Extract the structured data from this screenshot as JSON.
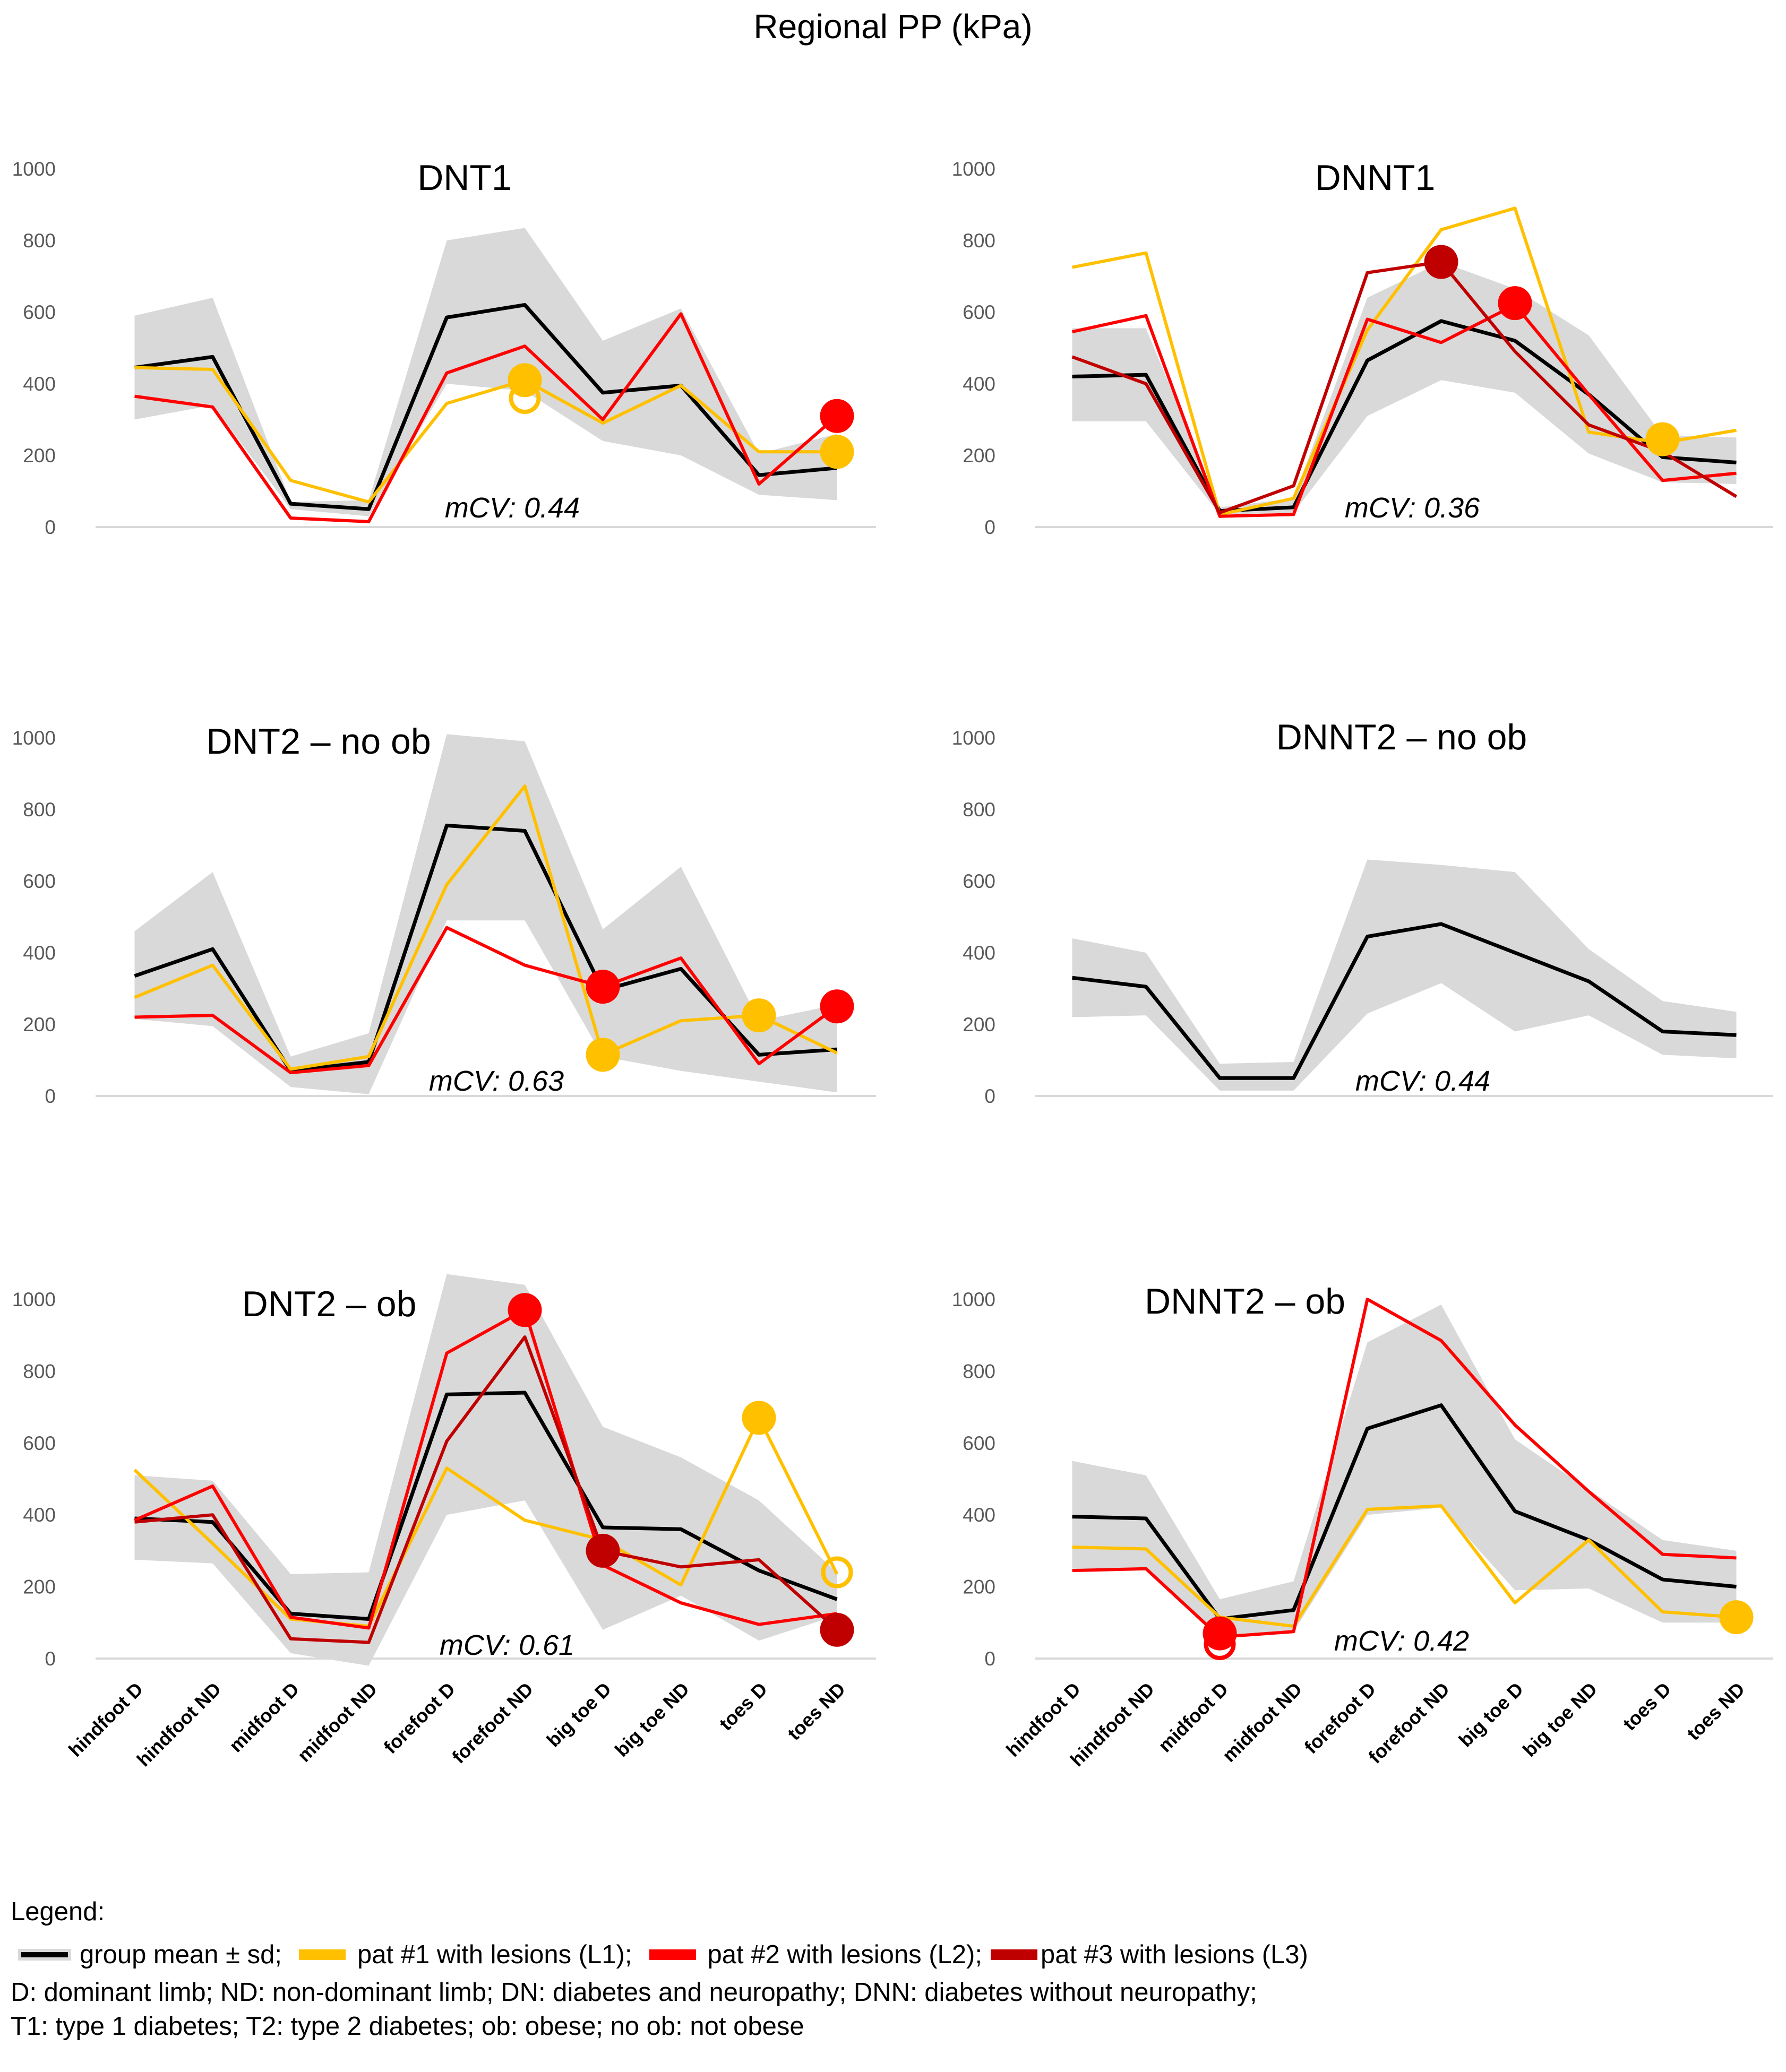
{
  "title": "Regional PP (kPa)",
  "colors": {
    "mean": "#000000",
    "sd_band": "#d9d9d9",
    "pat1": "#ffc000",
    "pat2": "#ff0000",
    "pat3": "#c00000",
    "axis": "#d9d9d9",
    "tick_text": "#595959"
  },
  "chart_data": [
    {
      "type": "line",
      "title": "DNT1",
      "annotation": "mCV: 0.44",
      "categories": [
        "hindfoot D",
        "hindfoot ND",
        "midfoot D",
        "midfoot ND",
        "forefoot D",
        "forefoot ND",
        "big toe D",
        "big toe ND",
        "toes D",
        "toes ND"
      ],
      "show_category_labels": false,
      "yticks": [
        "0",
        "200",
        "400",
        "600",
        "800",
        "1000"
      ],
      "ylim": [
        0,
        1000
      ],
      "band": {
        "lower": [
          300,
          340,
          50,
          30,
          400,
          380,
          240,
          200,
          90,
          75
        ],
        "upper": [
          590,
          640,
          70,
          75,
          800,
          835,
          520,
          610,
          205,
          260
        ]
      },
      "series": [
        {
          "name": "group mean ± sd",
          "color_key": "mean",
          "values": [
            445,
            475,
            65,
            50,
            585,
            620,
            375,
            395,
            145,
            165
          ]
        },
        {
          "name": "pat #1 with lesions (L1)",
          "color_key": "pat1",
          "values": [
            445,
            440,
            130,
            70,
            345,
            410,
            290,
            395,
            210,
            210
          ]
        },
        {
          "name": "pat #2 with lesions (L2)",
          "color_key": "pat2",
          "values": [
            365,
            335,
            25,
            15,
            430,
            505,
            300,
            595,
            120,
            310
          ]
        }
      ],
      "markers": [
        {
          "series": "pat1",
          "index": 5,
          "value": 410,
          "style": "filled"
        },
        {
          "series": "pat1",
          "index": 5,
          "value": 360,
          "style": "open"
        },
        {
          "series": "pat1",
          "index": 9,
          "value": 210,
          "style": "filled"
        },
        {
          "series": "pat2",
          "index": 9,
          "value": 310,
          "style": "filled"
        }
      ]
    },
    {
      "type": "line",
      "title": "DNNT1",
      "annotation": "mCV: 0.36",
      "categories": [
        "hindfoot D",
        "hindfoot ND",
        "midfoot D",
        "midfoot ND",
        "forefoot D",
        "forefoot ND",
        "big toe D",
        "big toe ND",
        "toes D",
        "toes ND"
      ],
      "show_category_labels": false,
      "yticks": [
        "0",
        "200",
        "400",
        "600",
        "800",
        "1000"
      ],
      "ylim": [
        0,
        1000
      ],
      "band": {
        "lower": [
          295,
          295,
          35,
          40,
          310,
          410,
          375,
          205,
          125,
          120
        ],
        "upper": [
          555,
          555,
          55,
          80,
          640,
          740,
          665,
          535,
          255,
          250
        ]
      },
      "series": [
        {
          "name": "group mean ± sd",
          "color_key": "mean",
          "values": [
            420,
            425,
            45,
            55,
            465,
            575,
            520,
            370,
            195,
            180
          ]
        },
        {
          "name": "pat #1 with lesions (L1)",
          "color_key": "pat1",
          "values": [
            725,
            765,
            35,
            80,
            550,
            830,
            890,
            265,
            235,
            270
          ]
        },
        {
          "name": "pat #2 with lesions (L2)",
          "color_key": "pat2",
          "values": [
            545,
            590,
            30,
            35,
            580,
            515,
            620,
            370,
            130,
            150
          ]
        },
        {
          "name": "pat #3 with lesions (L3)",
          "color_key": "pat3",
          "values": [
            475,
            400,
            40,
            115,
            710,
            740,
            490,
            285,
            210,
            85
          ]
        }
      ],
      "markers": [
        {
          "series": "pat3",
          "index": 5,
          "value": 740,
          "style": "filled"
        },
        {
          "series": "pat2",
          "index": 6,
          "value": 625,
          "style": "filled"
        },
        {
          "series": "pat1",
          "index": 8,
          "value": 245,
          "style": "filled"
        }
      ]
    },
    {
      "type": "line",
      "title": "DNT2 – no ob",
      "annotation": "mCV: 0.63",
      "categories": [
        "hindfoot D",
        "hindfoot ND",
        "midfoot D",
        "midfoot ND",
        "forefoot D",
        "forefoot ND",
        "big toe D",
        "big toe ND",
        "toes D",
        "toes ND"
      ],
      "show_category_labels": false,
      "yticks": [
        "0",
        "200",
        "400",
        "600",
        "800",
        "1000"
      ],
      "ylim": [
        0,
        1000
      ],
      "band": {
        "lower": [
          215,
          195,
          25,
          5,
          490,
          490,
          110,
          70,
          40,
          10
        ],
        "upper": [
          460,
          625,
          110,
          175,
          1010,
          990,
          465,
          640,
          210,
          255
        ]
      },
      "series": [
        {
          "name": "group mean ± sd",
          "color_key": "mean",
          "values": [
            335,
            410,
            70,
            95,
            755,
            740,
            295,
            355,
            115,
            130
          ]
        },
        {
          "name": "pat #1 with lesions (L1)",
          "color_key": "pat1",
          "values": [
            275,
            365,
            75,
            110,
            590,
            865,
            115,
            210,
            225,
            120
          ]
        },
        {
          "name": "pat #2 with lesions (L2)",
          "color_key": "pat2",
          "values": [
            220,
            225,
            65,
            85,
            470,
            365,
            305,
            385,
            90,
            250
          ]
        }
      ],
      "markers": [
        {
          "series": "pat2",
          "index": 6,
          "value": 305,
          "style": "filled"
        },
        {
          "series": "pat1",
          "index": 6,
          "value": 115,
          "style": "filled"
        },
        {
          "series": "pat1",
          "index": 8,
          "value": 225,
          "style": "filled"
        },
        {
          "series": "pat2",
          "index": 9,
          "value": 250,
          "style": "filled"
        }
      ]
    },
    {
      "type": "line",
      "title": "DNNT2 – no ob",
      "annotation": "mCV: 0.44",
      "categories": [
        "hindfoot D",
        "hindfoot ND",
        "midfoot D",
        "midfoot ND",
        "forefoot D",
        "forefoot ND",
        "big toe D",
        "big toe ND",
        "toes D",
        "toes ND"
      ],
      "show_category_labels": false,
      "yticks": [
        "0",
        "200",
        "400",
        "600",
        "800",
        "1000"
      ],
      "ylim": [
        0,
        1000
      ],
      "band": {
        "lower": [
          220,
          225,
          15,
          15,
          230,
          315,
          180,
          225,
          115,
          105
        ],
        "upper": [
          440,
          400,
          90,
          95,
          660,
          645,
          625,
          410,
          265,
          235
        ]
      },
      "series": [
        {
          "name": "group mean ± sd",
          "color_key": "mean",
          "values": [
            330,
            305,
            50,
            50,
            445,
            480,
            400,
            320,
            180,
            170
          ]
        }
      ],
      "markers": []
    },
    {
      "type": "line",
      "title": "DNT2 – ob",
      "annotation": "mCV: 0.61",
      "categories": [
        "hindfoot D",
        "hindfoot ND",
        "midfoot D",
        "midfoot ND",
        "forefoot D",
        "forefoot ND",
        "big toe D",
        "big toe ND",
        "toes D",
        "toes ND"
      ],
      "show_category_labels": true,
      "yticks": [
        "0",
        "200",
        "400",
        "600",
        "800",
        "1000"
      ],
      "ylim": [
        0,
        1000
      ],
      "band": {
        "lower": [
          275,
          265,
          15,
          -20,
          400,
          440,
          80,
          175,
          50,
          120
        ],
        "upper": [
          510,
          495,
          235,
          240,
          1070,
          1040,
          645,
          560,
          440,
          240
        ]
      },
      "series": [
        {
          "name": "group mean ± sd",
          "color_key": "mean",
          "values": [
            390,
            380,
            125,
            110,
            735,
            740,
            365,
            360,
            245,
            165
          ]
        },
        {
          "name": "pat #1 with lesions (L1)",
          "color_key": "pat1",
          "values": [
            525,
            320,
            110,
            90,
            530,
            385,
            330,
            205,
            670,
            235
          ]
        },
        {
          "name": "pat #2 with lesions (L2)",
          "color_key": "pat2",
          "values": [
            385,
            480,
            115,
            85,
            850,
            970,
            260,
            155,
            95,
            125
          ]
        },
        {
          "name": "pat #3 with lesions (L3)",
          "color_key": "pat3",
          "values": [
            380,
            400,
            55,
            45,
            605,
            895,
            300,
            255,
            275,
            80
          ]
        }
      ],
      "markers": [
        {
          "series": "pat2",
          "index": 5,
          "value": 970,
          "style": "filled"
        },
        {
          "series": "pat3",
          "index": 6,
          "value": 300,
          "style": "filled"
        },
        {
          "series": "pat1",
          "index": 8,
          "value": 670,
          "style": "filled"
        },
        {
          "series": "pat1",
          "index": 9,
          "value": 240,
          "style": "open"
        },
        {
          "series": "pat3",
          "index": 9,
          "value": 80,
          "style": "filled"
        }
      ]
    },
    {
      "type": "line",
      "title": "DNNT2 – ob",
      "annotation": "mCV: 0.42",
      "categories": [
        "hindfoot D",
        "hindfoot ND",
        "midfoot D",
        "midfoot ND",
        "forefoot D",
        "forefoot ND",
        "big toe D",
        "big toe ND",
        "toes D",
        "toes ND"
      ],
      "show_category_labels": true,
      "yticks": [
        "0",
        "200",
        "400",
        "600",
        "800",
        "1000"
      ],
      "ylim": [
        0,
        1000
      ],
      "band": {
        "lower": [
          250,
          250,
          55,
          75,
          400,
          420,
          190,
          195,
          100,
          100
        ],
        "upper": [
          550,
          510,
          165,
          215,
          880,
          985,
          610,
          470,
          330,
          300
        ]
      },
      "series": [
        {
          "name": "group mean ± sd",
          "color_key": "mean",
          "values": [
            395,
            390,
            110,
            135,
            640,
            705,
            410,
            330,
            220,
            200
          ]
        },
        {
          "name": "pat #1 with lesions (L1)",
          "color_key": "pat1",
          "values": [
            310,
            305,
            115,
            90,
            415,
            425,
            155,
            330,
            130,
            115
          ]
        },
        {
          "name": "pat #2 with lesions (L2)",
          "color_key": "pat2",
          "values": [
            245,
            250,
            60,
            75,
            1000,
            885,
            650,
            465,
            290,
            280
          ]
        }
      ],
      "markers": [
        {
          "series": "pat2",
          "index": 2,
          "value": 70,
          "style": "filled"
        },
        {
          "series": "pat2",
          "index": 2,
          "value": 40,
          "style": "open"
        },
        {
          "series": "pat1",
          "index": 9,
          "value": 115,
          "style": "filled"
        }
      ]
    }
  ],
  "legend": {
    "heading": "Legend:",
    "items": [
      {
        "label": "group mean ± sd;",
        "color_key": "mean"
      },
      {
        "label": "pat #1 with lesions (L1);",
        "color_key": "pat1"
      },
      {
        "label": "pat #2 with lesions (L2);",
        "color_key": "pat2"
      },
      {
        "label": "pat #3 with lesions (L3)",
        "color_key": "pat3"
      }
    ],
    "notes": [
      "D: dominant limb; ND: non-dominant limb; DN: diabetes and neuropathy; DNN: diabetes without neuropathy;",
      "T1: type 1 diabetes; T2: type 2 diabetes; ob: obese; no ob: not obese"
    ]
  }
}
